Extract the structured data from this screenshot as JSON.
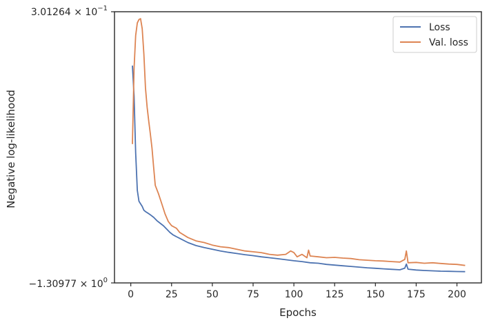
{
  "chart_data": {
    "type": "line",
    "xlabel": "Epochs",
    "ylabel": "Negative log-likelihood",
    "xlim": [
      -10,
      215
    ],
    "ylim": [
      -1.30977,
      0.301264
    ],
    "xticks": [
      0,
      25,
      50,
      75,
      100,
      125,
      150,
      175,
      200
    ],
    "xtick_labels": [
      "0",
      "25",
      "50",
      "75",
      "100",
      "125",
      "150",
      "175",
      "200"
    ],
    "ytick_labels": {
      "top": {
        "mantissa": "3.01264",
        "base": "10",
        "exp": "−1"
      },
      "bottom": {
        "mantissa": "−1.30977",
        "base": "10",
        "exp": "0"
      }
    },
    "grid": false,
    "legend_position": "top-right",
    "colors": {
      "loss": "#4c72b0",
      "val_loss": "#dd8452",
      "axis": "#262626"
    },
    "series": [
      {
        "name": "Loss",
        "key": "loss",
        "x": [
          1,
          2,
          3,
          4,
          5,
          6,
          7,
          8,
          9,
          10,
          12,
          14,
          16,
          18,
          20,
          22,
          24,
          26,
          28,
          30,
          35,
          40,
          45,
          50,
          55,
          60,
          65,
          70,
          75,
          80,
          85,
          90,
          95,
          100,
          105,
          110,
          115,
          120,
          125,
          130,
          135,
          140,
          145,
          150,
          155,
          160,
          165,
          168,
          169,
          170,
          175,
          180,
          185,
          190,
          195,
          200,
          205
        ],
        "values": [
          -0.019,
          -0.2,
          -0.537,
          -0.76,
          -0.825,
          -0.84,
          -0.855,
          -0.878,
          -0.886,
          -0.892,
          -0.905,
          -0.92,
          -0.94,
          -0.955,
          -0.97,
          -0.99,
          -1.01,
          -1.025,
          -1.035,
          -1.045,
          -1.07,
          -1.088,
          -1.1,
          -1.11,
          -1.12,
          -1.128,
          -1.135,
          -1.142,
          -1.148,
          -1.155,
          -1.16,
          -1.166,
          -1.172,
          -1.178,
          -1.183,
          -1.19,
          -1.193,
          -1.2,
          -1.204,
          -1.208,
          -1.212,
          -1.216,
          -1.22,
          -1.223,
          -1.226,
          -1.229,
          -1.232,
          -1.222,
          -1.198,
          -1.228,
          -1.233,
          -1.236,
          -1.238,
          -1.24,
          -1.241,
          -1.242,
          -1.243
        ]
      },
      {
        "name": "Val. loss",
        "key": "val_loss",
        "x": [
          1,
          2,
          3,
          4,
          5,
          6,
          7,
          8,
          9,
          10,
          11,
          12,
          13,
          14,
          15,
          17,
          19,
          21,
          23,
          25,
          28,
          30,
          35,
          40,
          45,
          50,
          55,
          60,
          65,
          70,
          75,
          80,
          85,
          90,
          95,
          98,
          100,
          102,
          105,
          108,
          109,
          110,
          115,
          120,
          125,
          130,
          135,
          140,
          145,
          150,
          155,
          160,
          165,
          168,
          169,
          170,
          175,
          180,
          185,
          190,
          195,
          200,
          205
        ],
        "values": [
          -0.485,
          -0.035,
          0.16,
          0.235,
          0.255,
          0.26,
          0.2,
          0.05,
          -0.15,
          -0.265,
          -0.35,
          -0.425,
          -0.51,
          -0.62,
          -0.73,
          -0.78,
          -0.84,
          -0.9,
          -0.945,
          -0.97,
          -0.985,
          -1.01,
          -1.04,
          -1.06,
          -1.07,
          -1.085,
          -1.095,
          -1.1,
          -1.11,
          -1.12,
          -1.125,
          -1.13,
          -1.14,
          -1.145,
          -1.14,
          -1.12,
          -1.13,
          -1.155,
          -1.14,
          -1.16,
          -1.115,
          -1.15,
          -1.155,
          -1.16,
          -1.158,
          -1.162,
          -1.165,
          -1.172,
          -1.175,
          -1.178,
          -1.18,
          -1.183,
          -1.186,
          -1.17,
          -1.12,
          -1.19,
          -1.188,
          -1.193,
          -1.19,
          -1.194,
          -1.198,
          -1.2,
          -1.206
        ]
      }
    ]
  }
}
